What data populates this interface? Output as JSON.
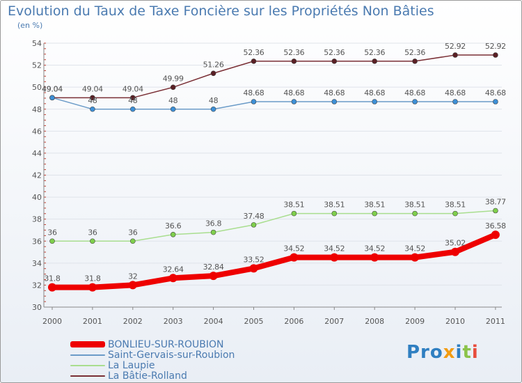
{
  "header": {
    "title": "Evolution du Taux de Taxe Foncière sur les Propriétés Non Bâties",
    "unit": "(en %)"
  },
  "logo": {
    "p1": "Pro",
    "p2": "x",
    "p3": "i",
    "p4": "t",
    "p5": "i"
  },
  "chart_data": {
    "type": "line",
    "title": "Evolution du Taux de Taxe Foncière sur les Propriétés Non Bâties",
    "ylabel": "(en %)",
    "xlabel": "",
    "categories": [
      "2000",
      "2001",
      "2002",
      "2003",
      "2004",
      "2005",
      "2006",
      "2007",
      "2008",
      "2009",
      "2010",
      "2011"
    ],
    "ylim": [
      30,
      54
    ],
    "yticks": [
      30,
      32,
      34,
      36,
      38,
      40,
      42,
      44,
      46,
      48,
      50,
      52,
      54
    ],
    "grid": "horizontal",
    "legend_position": "bottom-left",
    "series": [
      {
        "name": "BONLIEU-SUR-ROUBION",
        "color": "#ee0000",
        "marker": "#ee0000",
        "width": 8,
        "values": [
          31.8,
          31.8,
          32,
          32.64,
          32.84,
          33.52,
          34.52,
          34.52,
          34.52,
          34.52,
          35.02,
          36.58
        ],
        "labels": [
          "31.8",
          "31.8",
          "32",
          "32.64",
          "32.84",
          "33.52",
          "34.52",
          "34.52",
          "34.52",
          "34.52",
          "35.02",
          "36.58"
        ]
      },
      {
        "name": "Saint-Gervais-sur-Roubion",
        "color": "#6b9bc8",
        "marker": "#3d8fd6",
        "width": 1.5,
        "values": [
          49.04,
          48,
          48,
          48,
          48,
          48.68,
          48.68,
          48.68,
          48.68,
          48.68,
          48.68,
          48.68
        ],
        "labels": [
          "49.04",
          "48",
          "48",
          "48",
          "48",
          "48.68",
          "48.68",
          "48.68",
          "48.68",
          "48.68",
          "48.68",
          "48.68"
        ]
      },
      {
        "name": "La Laupie",
        "color": "#a9de8f",
        "marker": "#7fcf4c",
        "width": 1.5,
        "values": [
          36,
          36,
          36,
          36.6,
          36.8,
          37.48,
          38.51,
          38.51,
          38.51,
          38.51,
          38.51,
          38.77
        ],
        "labels": [
          "36",
          "36",
          "36",
          "36.6",
          "36.8",
          "37.48",
          "38.51",
          "38.51",
          "38.51",
          "38.51",
          "38.51",
          "38.77"
        ]
      },
      {
        "name": "La Bâtie-Rolland",
        "color": "#7a2f35",
        "marker": "#5a1f24",
        "width": 1.5,
        "values": [
          49.04,
          49.04,
          49.04,
          49.99,
          51.26,
          52.36,
          52.36,
          52.36,
          52.36,
          52.36,
          52.92,
          52.92
        ],
        "labels": [
          "49.04",
          "49.04",
          "49.04",
          "49.99",
          "51.26",
          "52.36",
          "52.36",
          "52.36",
          "52.36",
          "52.36",
          "52.92",
          "52.92"
        ]
      }
    ]
  }
}
